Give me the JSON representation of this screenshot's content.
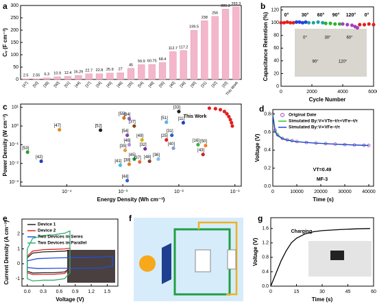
{
  "chart_data": [
    {
      "panel": "a",
      "type": "bar",
      "ylabel": "Cᵥ (F cm⁻³)",
      "color": "#f4b6cb",
      "categories": [
        "[47]",
        "[53]",
        "[38]",
        "[50]",
        "[51]",
        "[44]",
        "[37]",
        "[34]",
        "[49]",
        "[46]",
        "[35]",
        "[54]",
        "[48]",
        "[55]",
        "[40]",
        "[36]",
        "[30]",
        "[31]",
        "[32]",
        "[33]",
        "This Work"
      ],
      "values": [
        2.5,
        2.55,
        6.3,
        10.9,
        12.4,
        16.29,
        22.7,
        22.8,
        25.9,
        27,
        45,
        59.9,
        60.75,
        68.4,
        112.7,
        117.2,
        199.5,
        238,
        256,
        285.2,
        293.3
      ],
      "ylim": [
        0,
        300
      ],
      "yticks": [
        0,
        50,
        100,
        150,
        200,
        250,
        300
      ]
    },
    {
      "panel": "b",
      "type": "scatter",
      "xlabel": "Cycle Number",
      "ylabel": "Capacitance Retention (%)",
      "xlim": [
        0,
        6000
      ],
      "xticks": [
        0,
        2000,
        4000,
        6000
      ],
      "ylim": [
        0,
        125
      ],
      "yticks": [
        0,
        20,
        40,
        60,
        80,
        100,
        120
      ],
      "series": [
        {
          "color": "#e02020",
          "x": [
            0,
            200,
            400,
            600,
            800
          ],
          "values": [
            100,
            100,
            101,
            100,
            100
          ]
        },
        {
          "color": "#2040e0",
          "x": [
            1000,
            1200,
            1400,
            1600
          ],
          "values": [
            101,
            101,
            100,
            101
          ]
        },
        {
          "color": "#20a0a0",
          "x": [
            1800,
            2100,
            2400,
            2700
          ],
          "values": [
            100,
            100,
            101,
            100
          ]
        },
        {
          "color": "#30b030",
          "x": [
            2900,
            3200,
            3500,
            3800
          ],
          "values": [
            99,
            99,
            98,
            98
          ]
        },
        {
          "color": "#a040c0",
          "x": [
            4000,
            4300,
            4600,
            4800,
            4950
          ],
          "values": [
            98,
            97,
            96,
            94,
            92
          ]
        },
        {
          "color": "#e02020",
          "x": [
            5100,
            5400,
            5700,
            6000
          ],
          "values": [
            97,
            97,
            98,
            97
          ]
        }
      ],
      "annotations": [
        {
          "text": "0°",
          "color": "#e02020"
        },
        {
          "text": "30°",
          "color": "#2040e0"
        },
        {
          "text": "60°",
          "color": "#20a0a0"
        },
        {
          "text": "90°",
          "color": "#30b030"
        },
        {
          "text": "120°",
          "color": "#a040c0"
        },
        {
          "text": "0°",
          "color": "#e02020"
        }
      ],
      "inset_labels": [
        "0°",
        "30°",
        "60°",
        "90°",
        "120°"
      ]
    },
    {
      "panel": "c",
      "type": "scatter",
      "xlabel": "Energy Density (Wh cm⁻³)",
      "ylabel": "Power Density (W cm⁻³)",
      "xlog": true,
      "ylog": true,
      "xlim": [
        1.5e-05,
        0.13
      ],
      "xticks": [
        {
          "value": 0.0001,
          "label": "10⁻⁴"
        },
        {
          "value": 0.001,
          "label": "10⁻³"
        },
        {
          "value": 0.01,
          "label": "10⁻²"
        },
        {
          "value": 0.1,
          "label": "10⁻¹"
        }
      ],
      "ylim": [
        0.0006,
        15
      ],
      "yticks": [
        {
          "value": 0.001,
          "label": "10⁻³"
        },
        {
          "value": 0.01,
          "label": "10⁻²"
        },
        {
          "value": 0.1,
          "label": "10⁻¹"
        },
        {
          "value": 1,
          "label": "10⁰"
        },
        {
          "value": 10,
          "label": "10¹"
        }
      ],
      "points": [
        {
          "label": "[53]",
          "x": 2e-05,
          "y": 0.04,
          "color": "#2ca02c"
        },
        {
          "label": "[42]",
          "x": 3.5e-05,
          "y": 0.013,
          "color": "#1f3fbf"
        },
        {
          "label": "[47]",
          "x": 7.4e-05,
          "y": 0.63,
          "color": "#e08a1e"
        },
        {
          "label": "[52]",
          "x": 0.0004,
          "y": 0.6,
          "color": "#222222"
        },
        {
          "label": "[55]",
          "x": 0.00105,
          "y": 2.7,
          "color": "#e07020"
        },
        {
          "label": "[34]",
          "x": 0.0013,
          "y": 2.5,
          "color": "#9060c0"
        },
        {
          "label": "[37]",
          "x": 0.0016,
          "y": 1.0,
          "color": "#8b4513"
        },
        {
          "label": "[54]",
          "x": 0.0012,
          "y": 0.32,
          "color": "#8040b0"
        },
        {
          "label": "[46]",
          "x": 0.0013,
          "y": 0.1,
          "color": "#b090e0"
        },
        {
          "label": "[35]",
          "x": 0.0011,
          "y": 0.05,
          "color": "#e0a030"
        },
        {
          "label": "[41]",
          "x": 0.0009,
          "y": 0.008,
          "color": "#40c0e0"
        },
        {
          "label": "[38]",
          "x": 0.0013,
          "y": 0.009,
          "color": "#e08020"
        },
        {
          "label": "[45]",
          "x": 0.0016,
          "y": 0.017,
          "color": "#20a040"
        },
        {
          "label": "[37]",
          "x": 0.002,
          "y": 0.012,
          "color": "#e07030"
        },
        {
          "label": "[49]",
          "x": 0.0022,
          "y": 0.18,
          "color": "#d4b000"
        },
        {
          "label": "[32]",
          "x": 0.0025,
          "y": 0.06,
          "color": "#7030a0"
        },
        {
          "label": "[48]",
          "x": 0.003,
          "y": 0.013,
          "color": "#8b3a2a"
        },
        {
          "label": "[36]",
          "x": 0.0043,
          "y": 0.017,
          "color": "#80c0e0"
        },
        {
          "label": "[44]",
          "x": 0.0012,
          "y": 0.0012,
          "color": "#3060d0"
        },
        {
          "label": "[25]",
          "x": 0.006,
          "y": 0.18,
          "color": "#e02020"
        },
        {
          "label": "[31]",
          "x": 0.0075,
          "y": 0.32,
          "color": "#2060d0"
        },
        {
          "label": "[40]",
          "x": 0.008,
          "y": 0.065,
          "color": "#80a0d0"
        },
        {
          "label": "[43]",
          "x": 0.027,
          "y": 0.03,
          "color": "#d02020"
        },
        {
          "label": "[50]",
          "x": 0.03,
          "y": 0.09,
          "color": "#f08030"
        },
        {
          "label": "[16]",
          "x": 0.022,
          "y": 0.1,
          "color": "#40b040"
        },
        {
          "label": "[51]",
          "x": 0.006,
          "y": 1.6,
          "color": "#60b0f0"
        },
        {
          "label": "[33]",
          "x": 0.01,
          "y": 6,
          "color": "#222222"
        },
        {
          "label": "[11]",
          "x": 0.012,
          "y": 1.5,
          "color": "#2040c0"
        }
      ],
      "series": [
        {
          "name": "This Work",
          "color": "#e02020",
          "x": [
            0.035,
            0.045,
            0.055,
            0.065,
            0.072,
            0.078,
            0.083,
            0.087,
            0.09
          ],
          "values": [
            9,
            8.5,
            7.5,
            6,
            4.5,
            3.2,
            2.2,
            1.5,
            1.0
          ]
        }
      ]
    },
    {
      "panel": "d",
      "type": "line",
      "xlabel": "Time (s)",
      "ylabel": "Voltage (V)",
      "xlim": [
        0,
        42000
      ],
      "xticks": [
        0,
        10000,
        20000,
        30000,
        40000
      ],
      "ylim": [
        0,
        0.85
      ],
      "yticks": [
        {
          "value": 0,
          "label": "0.0"
        },
        0.2,
        0.4,
        0.6,
        0.8
      ],
      "series": [
        {
          "name": "Original Date",
          "color": "#a040c0",
          "mode": "markers",
          "x": [
            0,
            1000,
            2000,
            4000,
            6000,
            8000,
            10000,
            14000,
            18000,
            22000,
            26000,
            30000,
            34000,
            38000,
            40000
          ],
          "values": [
            0.8,
            0.62,
            0.57,
            0.53,
            0.515,
            0.505,
            0.495,
            0.485,
            0.478,
            0.472,
            0.467,
            0.462,
            0.458,
            0.454,
            0.452
          ]
        },
        {
          "name": "Simulated By:V∝VTe−t/τ+VFe−t/τ",
          "color": "#30c030",
          "mode": "lines",
          "x": [
            0,
            1000,
            2000,
            4000,
            6000,
            8000,
            10000,
            14000,
            18000,
            22000,
            26000,
            30000,
            34000,
            38000,
            40000
          ],
          "values": [
            0.8,
            0.62,
            0.57,
            0.53,
            0.515,
            0.505,
            0.495,
            0.485,
            0.478,
            0.472,
            0.467,
            0.462,
            0.458,
            0.454,
            0.452
          ]
        },
        {
          "name": "Simulated By:V∝VFe−t/τ",
          "color": "#2040e0",
          "mode": "lines",
          "x": [
            0,
            1000,
            2000,
            4000,
            6000,
            8000,
            10000,
            14000,
            18000,
            22000,
            26000,
            30000,
            34000,
            38000,
            40000
          ],
          "values": [
            0.78,
            0.6,
            0.56,
            0.525,
            0.51,
            0.5,
            0.493,
            0.484,
            0.477,
            0.471,
            0.466,
            0.461,
            0.457,
            0.453,
            0.451
          ]
        }
      ],
      "annotations": [
        {
          "text": "VT=0.49",
          "color": "#000000"
        },
        {
          "text": "MF-3",
          "color": "#000000"
        }
      ]
    },
    {
      "panel": "e",
      "type": "line",
      "xlabel": "Voltage (V)",
      "ylabel": "Current Density (A cm⁻³)",
      "xlim": [
        -0.1,
        1.7
      ],
      "xticks": [
        {
          "value": 0,
          "label": "0.0"
        },
        0.3,
        0.6,
        0.9,
        1.2,
        1.5
      ],
      "ylim": [
        -1.5,
        3
      ],
      "yticks": [
        -1,
        0,
        1,
        2
      ],
      "series": [
        {
          "name": "Device 1",
          "color": "#222222",
          "mode": "lines",
          "x": [
            0,
            0.1,
            0.3,
            0.5,
            0.7,
            0.8,
            0.8,
            0.7,
            0.5,
            0.3,
            0.1,
            0,
            0
          ],
          "values": [
            0.4,
            0.72,
            0.8,
            0.82,
            0.85,
            0.9,
            -0.3,
            -0.55,
            -0.6,
            -0.6,
            -0.62,
            -0.5,
            0.4
          ]
        },
        {
          "name": "Device 2",
          "color": "#e02020",
          "mode": "lines",
          "x": [
            0,
            0.1,
            0.3,
            0.5,
            0.7,
            0.8,
            0.8,
            0.7,
            0.5,
            0.3,
            0.1,
            0,
            0
          ],
          "values": [
            0.5,
            0.85,
            0.95,
            0.97,
            1.0,
            1.05,
            -0.35,
            -0.65,
            -0.7,
            -0.7,
            -0.72,
            -0.6,
            0.5
          ]
        },
        {
          "name": "Two Devices in Seres",
          "color": "#2050e0",
          "mode": "lines",
          "x": [
            0,
            0.2,
            0.6,
            1.0,
            1.4,
            1.6,
            1.6,
            1.4,
            1.0,
            0.6,
            0.2,
            0,
            0
          ],
          "values": [
            0.2,
            0.35,
            0.4,
            0.42,
            0.45,
            0.5,
            -0.15,
            -0.28,
            -0.3,
            -0.3,
            -0.32,
            -0.25,
            0.2
          ]
        },
        {
          "name": "Two Devices in Parallel",
          "color": "#30b070",
          "mode": "lines",
          "x": [
            0,
            0.1,
            0.3,
            0.5,
            0.7,
            0.8,
            0.8,
            0.7,
            0.5,
            0.3,
            0.1,
            0,
            0
          ],
          "values": [
            1.0,
            1.7,
            1.9,
            1.95,
            2.05,
            2.2,
            -0.6,
            -1.0,
            -1.1,
            -1.1,
            -1.15,
            -1.0,
            1.0
          ]
        }
      ]
    },
    {
      "panel": "f",
      "type": "diagram"
    },
    {
      "panel": "g",
      "type": "line",
      "xlabel": "Time (s)",
      "ylabel": "Voltage (V)",
      "xlim": [
        0,
        60
      ],
      "xticks": [
        0,
        15,
        30,
        45,
        60
      ],
      "ylim": [
        0,
        1.9
      ],
      "yticks": [
        {
          "value": 0,
          "label": "0.0"
        },
        0.4,
        0.8,
        1.2,
        1.6
      ],
      "series": [
        {
          "color": "#000000",
          "mode": "lines",
          "x": [
            0,
            3,
            6,
            9,
            12,
            15,
            20,
            25,
            30,
            40,
            50,
            58
          ],
          "values": [
            0,
            0.35,
            0.7,
            0.98,
            1.2,
            1.33,
            1.45,
            1.51,
            1.54,
            1.57,
            1.59,
            1.6
          ]
        }
      ],
      "annotations": [
        {
          "text": "Charging",
          "color": "#000000"
        }
      ]
    }
  ]
}
